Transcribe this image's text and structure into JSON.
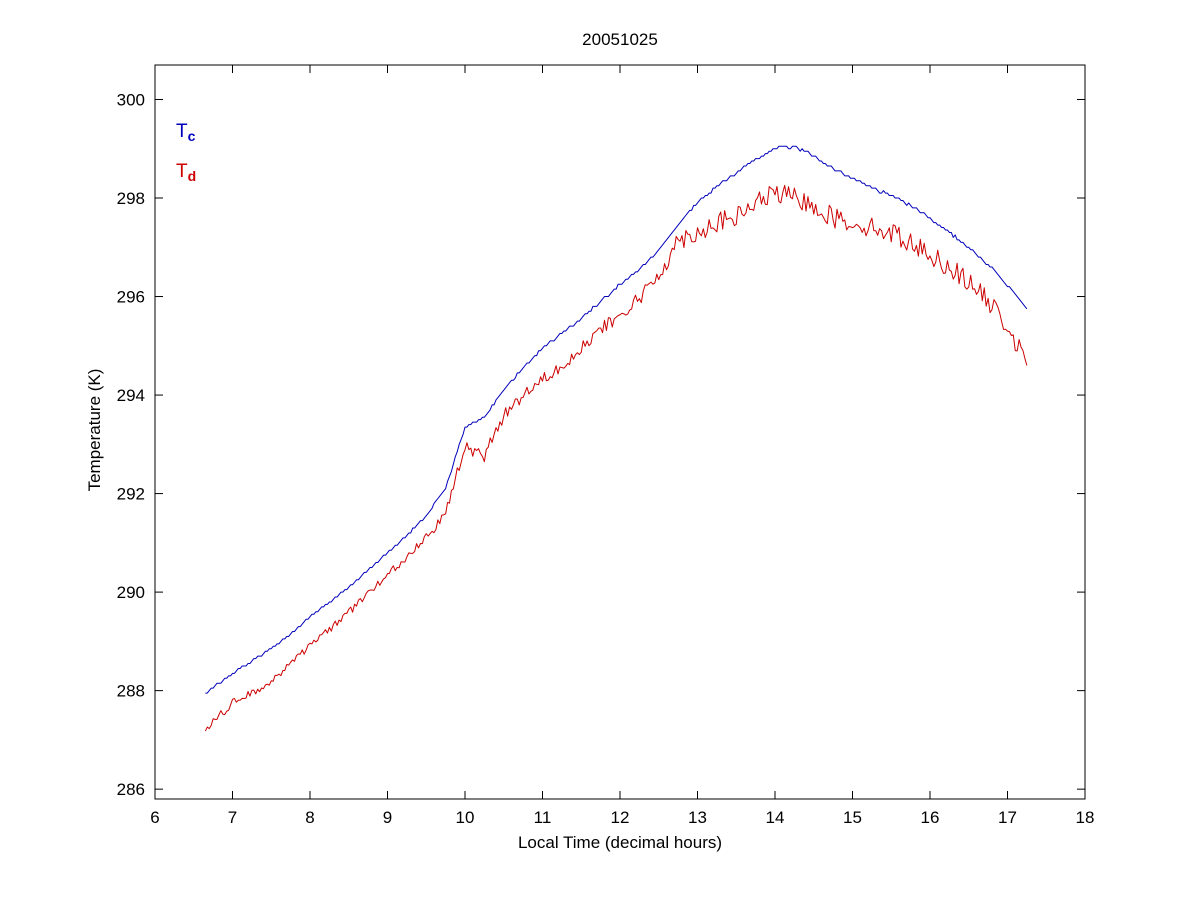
{
  "figure": {
    "title": "20051025",
    "xlabel": "Local Time (decimal hours)",
    "ylabel": "Temperature (K)",
    "background": "#ffffff",
    "axis_color": "#000000",
    "legend": [
      {
        "base": "T",
        "sub": "c",
        "color": "#0000bb"
      },
      {
        "base": "T",
        "sub": "d",
        "color": "#cc0000"
      }
    ]
  },
  "chart_data": {
    "type": "line",
    "title": "20051025",
    "xlabel": "Local Time (decimal hours)",
    "ylabel": "Temperature (K)",
    "xlim": [
      6,
      18
    ],
    "ylim": [
      285.8,
      300.7
    ],
    "xticks": [
      6,
      7,
      8,
      9,
      10,
      11,
      12,
      13,
      14,
      15,
      16,
      17,
      18
    ],
    "yticks": [
      286,
      288,
      290,
      292,
      294,
      296,
      298,
      300
    ],
    "grid": false,
    "legend_position": "top-left-inside",
    "series": [
      {
        "name": "T_c",
        "color": "#0000bb",
        "noise": 0.02,
        "quantize": 0.05,
        "x": [
          6.65,
          7.0,
          7.25,
          7.5,
          7.75,
          8.0,
          8.25,
          8.5,
          8.75,
          9.0,
          9.25,
          9.5,
          9.75,
          10.0,
          10.25,
          10.5,
          10.75,
          11.0,
          11.25,
          11.5,
          11.75,
          12.0,
          12.25,
          12.5,
          12.75,
          13.0,
          13.25,
          13.5,
          13.75,
          14.0,
          14.25,
          14.5,
          14.75,
          15.0,
          15.25,
          15.5,
          15.75,
          16.0,
          16.25,
          16.5,
          16.75,
          17.0,
          17.25
        ],
        "y": [
          287.95,
          288.35,
          288.6,
          288.85,
          289.15,
          289.5,
          289.8,
          290.1,
          290.45,
          290.8,
          291.15,
          291.55,
          292.1,
          293.35,
          293.55,
          294.1,
          294.55,
          294.95,
          295.25,
          295.55,
          295.9,
          296.25,
          296.55,
          296.95,
          297.45,
          297.9,
          298.25,
          298.5,
          298.8,
          299.0,
          299.05,
          298.85,
          298.6,
          298.4,
          298.2,
          298.05,
          297.85,
          297.6,
          297.3,
          297.0,
          296.65,
          296.25,
          295.75
        ]
      },
      {
        "name": "T_d",
        "color": "#cc0000",
        "noise": 0.16,
        "quantize": 0,
        "x": [
          6.65,
          7.0,
          7.25,
          7.5,
          7.75,
          8.0,
          8.25,
          8.5,
          8.75,
          9.0,
          9.25,
          9.5,
          9.75,
          10.0,
          10.25,
          10.5,
          10.75,
          11.0,
          11.25,
          11.5,
          11.75,
          12.0,
          12.25,
          12.5,
          12.75,
          13.0,
          13.25,
          13.5,
          13.75,
          14.0,
          14.25,
          14.5,
          14.75,
          15.0,
          15.25,
          15.5,
          15.75,
          16.0,
          16.25,
          16.5,
          16.75,
          17.0,
          17.25
        ],
        "y": [
          287.2,
          287.75,
          287.95,
          288.2,
          288.55,
          288.9,
          289.25,
          289.6,
          289.95,
          290.35,
          290.7,
          291.15,
          291.6,
          292.95,
          292.75,
          293.6,
          294.0,
          294.35,
          294.6,
          294.95,
          295.3,
          295.6,
          295.95,
          296.45,
          297.15,
          297.3,
          297.5,
          297.6,
          297.9,
          298.1,
          298.0,
          297.85,
          297.6,
          297.5,
          297.4,
          297.3,
          297.1,
          296.85,
          296.6,
          296.3,
          295.9,
          295.4,
          294.6
        ]
      }
    ]
  }
}
